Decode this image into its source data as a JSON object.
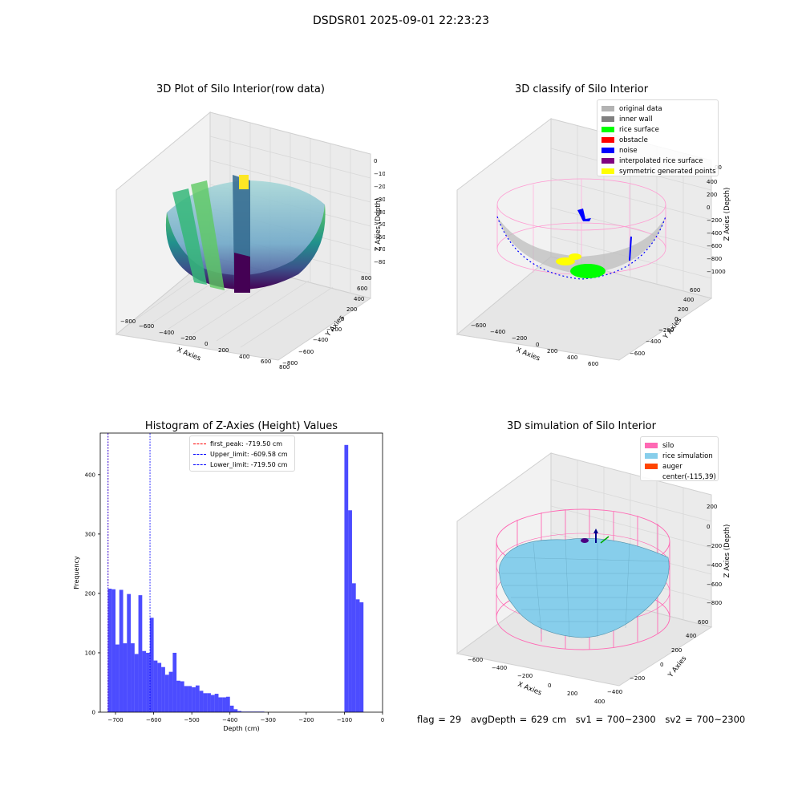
{
  "title": "DSDSR01 2025-09-01 22:23:23",
  "panels": {
    "raw3d": {
      "title": "3D Plot of Silo Interior(row data)",
      "xlabel": "X Axies",
      "ylabel": "Y Axies",
      "zlabel": "Z Axies (Depth)",
      "xticks": [
        "−800",
        "−600",
        "−400",
        "−200",
        "0",
        "200",
        "400",
        "600",
        "800"
      ],
      "yticks": [
        "−800",
        "−600",
        "−400",
        "−200",
        "0",
        "200",
        "400",
        "600",
        "800"
      ],
      "zticks": [
        "0",
        "−100",
        "−200",
        "−300",
        "−400",
        "−500",
        "−600",
        "−700",
        "−800"
      ]
    },
    "classify3d": {
      "title": "3D classify of Silo Interior",
      "xlabel": "X Axies",
      "ylabel": "Y Axies",
      "zlabel": "Z Axies (Depth)",
      "xticks": [
        "−600",
        "−400",
        "−200",
        "0",
        "200",
        "400",
        "600"
      ],
      "yticks": [
        "−600",
        "−400",
        "−200",
        "0",
        "200",
        "400",
        "600"
      ],
      "zticks": [
        "400",
        "200",
        "0",
        "−200",
        "−400",
        "−600",
        "−800",
        "−1000"
      ],
      "zticks_partial": "00",
      "legend": [
        {
          "label": "original data",
          "color": "#b3b3b3"
        },
        {
          "label": "inner wall",
          "color": "#808080"
        },
        {
          "label": "rice surface",
          "color": "#00ff00"
        },
        {
          "label": "obstacle",
          "color": "#ff0000"
        },
        {
          "label": "noise",
          "color": "#0000ff"
        },
        {
          "label": "interpolated rice surface",
          "color": "#800080"
        },
        {
          "label": "symmetric generated points",
          "color": "#ffff00"
        }
      ]
    },
    "sim3d": {
      "title": "3D simulation of Silo Interior",
      "xlabel": "X Axies",
      "ylabel": "Y Axies",
      "zlabel": "Z Axies (Depth)",
      "xticks": [
        "−600",
        "−400",
        "−200",
        "0",
        "200",
        "400"
      ],
      "yticks": [
        "−400",
        "−200",
        "0",
        "200",
        "400",
        "600"
      ],
      "zticks": [
        "200",
        "0",
        "−200",
        "−400",
        "−600",
        "−800"
      ],
      "legend": [
        {
          "label": "silo",
          "color": "#ff69b4"
        },
        {
          "label": "rice simulation",
          "color": "#87ceeb"
        },
        {
          "label": "auger",
          "color": "#ff4500"
        },
        {
          "label": "center(-115,39)",
          "color": ""
        }
      ]
    }
  },
  "chart_data": {
    "type": "bar",
    "title": "Histogram of Z-Axies (Height) Values",
    "xlabel": "Depth (cm)",
    "ylabel": "Frequency",
    "xlim": [
      -740,
      0
    ],
    "ylim": [
      0,
      470
    ],
    "xticks": [
      -700,
      -600,
      -500,
      -400,
      -300,
      -200,
      -100,
      0
    ],
    "yticks": [
      0,
      100,
      200,
      300,
      400
    ],
    "bar_color": "#0000ff",
    "bins": [
      {
        "x0": -720,
        "x1": -710,
        "count": 208
      },
      {
        "x0": -710,
        "x1": -700,
        "count": 207
      },
      {
        "x0": -700,
        "x1": -690,
        "count": 114
      },
      {
        "x0": -690,
        "x1": -680,
        "count": 206
      },
      {
        "x0": -680,
        "x1": -670,
        "count": 116
      },
      {
        "x0": -670,
        "x1": -660,
        "count": 199
      },
      {
        "x0": -660,
        "x1": -650,
        "count": 116
      },
      {
        "x0": -650,
        "x1": -640,
        "count": 98
      },
      {
        "x0": -640,
        "x1": -630,
        "count": 197
      },
      {
        "x0": -630,
        "x1": -620,
        "count": 103
      },
      {
        "x0": -620,
        "x1": -610,
        "count": 100
      },
      {
        "x0": -610,
        "x1": -600,
        "count": 159
      },
      {
        "x0": -600,
        "x1": -590,
        "count": 87
      },
      {
        "x0": -590,
        "x1": -580,
        "count": 83
      },
      {
        "x0": -580,
        "x1": -570,
        "count": 76
      },
      {
        "x0": -570,
        "x1": -560,
        "count": 63
      },
      {
        "x0": -560,
        "x1": -550,
        "count": 68
      },
      {
        "x0": -550,
        "x1": -540,
        "count": 100
      },
      {
        "x0": -540,
        "x1": -530,
        "count": 53
      },
      {
        "x0": -530,
        "x1": -520,
        "count": 52
      },
      {
        "x0": -520,
        "x1": -510,
        "count": 44
      },
      {
        "x0": -510,
        "x1": -500,
        "count": 44
      },
      {
        "x0": -500,
        "x1": -490,
        "count": 42
      },
      {
        "x0": -490,
        "x1": -480,
        "count": 45
      },
      {
        "x0": -480,
        "x1": -470,
        "count": 36
      },
      {
        "x0": -470,
        "x1": -460,
        "count": 32
      },
      {
        "x0": -460,
        "x1": -450,
        "count": 32
      },
      {
        "x0": -450,
        "x1": -440,
        "count": 29
      },
      {
        "x0": -440,
        "x1": -430,
        "count": 31
      },
      {
        "x0": -430,
        "x1": -420,
        "count": 25
      },
      {
        "x0": -420,
        "x1": -410,
        "count": 25
      },
      {
        "x0": -410,
        "x1": -400,
        "count": 26
      },
      {
        "x0": -400,
        "x1": -390,
        "count": 11
      },
      {
        "x0": -390,
        "x1": -380,
        "count": 5
      },
      {
        "x0": -380,
        "x1": -370,
        "count": 2
      },
      {
        "x0": -370,
        "x1": -360,
        "count": 1
      },
      {
        "x0": -360,
        "x1": -350,
        "count": 1
      },
      {
        "x0": -350,
        "x1": -340,
        "count": 1
      },
      {
        "x0": -340,
        "x1": -330,
        "count": 1
      },
      {
        "x0": -330,
        "x1": -320,
        "count": 1
      },
      {
        "x0": -320,
        "x1": -310,
        "count": 1
      },
      {
        "x0": -100,
        "x1": -90,
        "count": 450
      },
      {
        "x0": -90,
        "x1": -80,
        "count": 340
      },
      {
        "x0": -80,
        "x1": -70,
        "count": 217
      },
      {
        "x0": -70,
        "x1": -60,
        "count": 190
      },
      {
        "x0": -60,
        "x1": -50,
        "count": 185
      }
    ],
    "vlines": [
      {
        "label": "first_peak: -719.50 cm",
        "x": -719.5,
        "color": "#ff0000"
      },
      {
        "label": "Upper_limit: -609.58 cm",
        "x": -609.58,
        "color": "#0000ff"
      },
      {
        "label": "Lower_limit: -719.50 cm",
        "x": -719.5,
        "color": "#0000ff"
      }
    ],
    "legend_position": "upper center"
  },
  "footer": {
    "flag": "flag = 29",
    "avg": "avgDepth = 629 cm",
    "sv1": "sv1 = 700~2300",
    "sv2": "sv2 = 700~2300"
  }
}
